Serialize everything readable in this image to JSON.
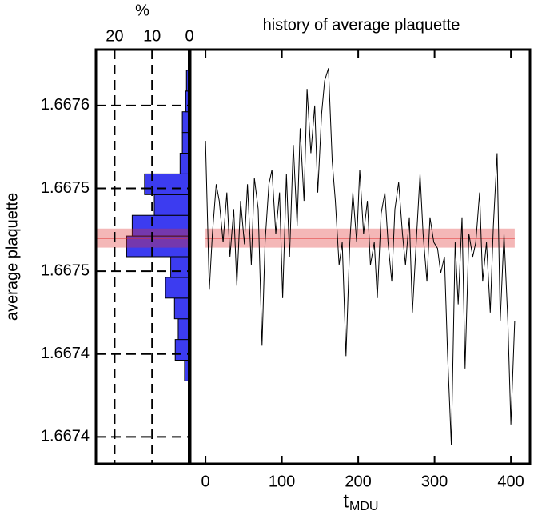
{
  "chart_data": [
    {
      "type": "histogram",
      "x_label": "%",
      "y_label": "average plaquette",
      "bins": [
        1.667427,
        1.667437,
        1.667447,
        1.667457,
        1.667467,
        1.667477,
        1.667487,
        1.667497,
        1.667507,
        1.667517,
        1.667527,
        1.667537,
        1.667547,
        1.667557,
        1.667567,
        1.667577
      ],
      "values": [
        1.3,
        3.8,
        3.0,
        4.0,
        6.4,
        5.0,
        16.8,
        15.3,
        9.4,
        12.0,
        2.5,
        1.9,
        1.9,
        1.0,
        0.8
      ],
      "color": "#3c3cf0",
      "xlim": [
        25,
        0
      ],
      "xticks": [
        20,
        10,
        0
      ],
      "ylim": [
        1.667387,
        1.667587
      ],
      "yticks": [
        {
          "value": 1.66756,
          "label": "1.6676"
        },
        {
          "value": 1.66752,
          "label": "1.6675"
        },
        {
          "value": 1.66748,
          "label": "1.6675"
        },
        {
          "value": 1.66744,
          "label": "1.6674"
        },
        {
          "value": 1.6674,
          "label": "1.6674"
        }
      ],
      "grid": true,
      "mean": 1.667496,
      "mean_error": 4.6e-06,
      "mean_color": "#e03030"
    },
    {
      "type": "line",
      "title": "history of average plaquette",
      "x_label": "t",
      "x_label_sub": "MDU",
      "x": [
        0,
        5,
        9,
        14,
        18,
        23,
        28,
        32,
        37,
        41,
        46,
        51,
        55,
        60,
        64,
        69,
        74,
        78,
        83,
        87,
        92,
        97,
        101,
        106,
        110,
        115,
        120,
        124,
        129,
        133,
        138,
        143,
        147,
        152,
        156,
        161,
        166,
        170,
        175,
        179,
        184,
        189,
        193,
        198,
        202,
        207,
        212,
        216,
        221,
        225,
        230,
        235,
        239,
        244,
        248,
        253,
        258,
        262,
        267,
        271,
        276,
        281,
        285,
        290,
        294,
        299,
        304,
        308,
        313,
        317,
        322,
        327,
        331,
        336,
        340,
        345,
        350,
        354,
        359,
        363,
        368,
        373,
        377,
        382,
        386,
        391,
        396,
        400,
        405
      ],
      "values": [
        1.667543,
        1.667471,
        1.667498,
        1.667522,
        1.667514,
        1.667494,
        1.667518,
        1.667487,
        1.66751,
        1.667473,
        1.667514,
        1.667493,
        1.667522,
        1.667483,
        1.667525,
        1.66751,
        1.667444,
        1.667494,
        1.667522,
        1.667529,
        1.667498,
        1.667518,
        1.667467,
        1.667527,
        1.667487,
        1.667541,
        1.667502,
        1.667549,
        1.667514,
        1.667568,
        1.667537,
        1.66756,
        1.667518,
        1.667556,
        1.667572,
        1.667578,
        1.667533,
        1.667514,
        1.667483,
        1.667494,
        1.667439,
        1.667494,
        1.667518,
        1.667494,
        1.667529,
        1.667498,
        1.667514,
        1.667483,
        1.667494,
        1.667467,
        1.667508,
        1.667518,
        1.667494,
        1.667475,
        1.66751,
        1.667523,
        1.667498,
        1.667483,
        1.667506,
        1.66746,
        1.667494,
        1.667527,
        1.667498,
        1.667475,
        1.667506,
        1.667494,
        1.667491,
        1.667479,
        1.667487,
        1.66744,
        1.667396,
        1.667494,
        1.667464,
        1.667506,
        1.667433,
        1.667498,
        1.667487,
        1.667494,
        1.667518,
        1.667475,
        1.667494,
        1.66746,
        1.667502,
        1.667537,
        1.667456,
        1.667498,
        1.667456,
        1.667406,
        1.667456
      ],
      "color": "#000000",
      "xlim": [
        -20,
        425
      ],
      "xticks": [
        0,
        100,
        200,
        300,
        400
      ],
      "ylim": [
        1.667387,
        1.667587
      ],
      "mean": 1.667496,
      "mean_error": 4.6e-06,
      "mean_color": "#e03030"
    }
  ]
}
